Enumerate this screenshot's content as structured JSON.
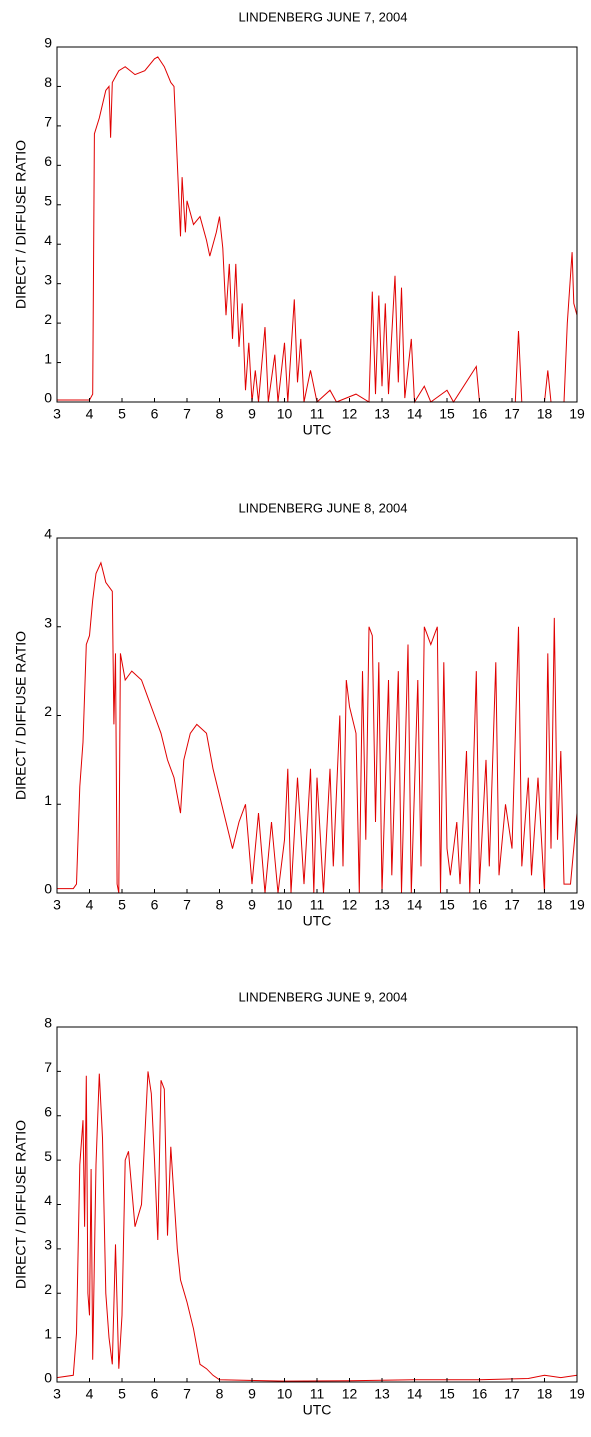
{
  "chart_data": [
    {
      "type": "line",
      "title": "LINDENBERG JUNE 7, 2004",
      "x_label": "UTC",
      "y_label": "DIRECT / DIFFUSE RATIO",
      "color": "#e00000",
      "xlim": [
        3,
        19
      ],
      "xticks": [
        3,
        4,
        5,
        6,
        7,
        8,
        9,
        10,
        11,
        12,
        13,
        14,
        15,
        16,
        17,
        18,
        19
      ],
      "ylim": [
        0,
        9
      ],
      "yticks": [
        0,
        1,
        2,
        3,
        4,
        5,
        6,
        7,
        8,
        9
      ],
      "x": [
        3,
        4.0,
        4.1,
        4.15,
        4.3,
        4.5,
        4.6,
        4.65,
        4.7,
        4.9,
        5.1,
        5.4,
        5.7,
        6.0,
        6.1,
        6.3,
        6.5,
        6.6,
        6.8,
        6.85,
        6.95,
        7.0,
        7.2,
        7.4,
        7.6,
        7.7,
        7.9,
        8.0,
        8.1,
        8.2,
        8.3,
        8.4,
        8.5,
        8.6,
        8.7,
        8.8,
        8.9,
        9.0,
        9.1,
        9.2,
        9.4,
        9.5,
        9.7,
        9.8,
        10.0,
        10.1,
        10.3,
        10.4,
        10.5,
        10.6,
        10.8,
        11.0,
        11.4,
        11.6,
        12.2,
        12.6,
        12.7,
        12.8,
        12.9,
        13.0,
        13.1,
        13.2,
        13.4,
        13.5,
        13.6,
        13.7,
        13.9,
        14.0,
        14.3,
        14.5,
        15.0,
        15.2,
        15.9,
        16.0,
        17.1,
        17.2,
        17.3,
        18.0,
        18.1,
        18.2,
        18.6,
        18.7,
        18.85,
        18.9,
        19.0
      ],
      "values": [
        0.05,
        0.05,
        0.2,
        6.8,
        7.2,
        7.9,
        8.0,
        6.7,
        8.1,
        8.4,
        8.5,
        8.3,
        8.4,
        8.7,
        8.75,
        8.5,
        8.1,
        8.0,
        4.2,
        5.7,
        4.3,
        5.1,
        4.5,
        4.7,
        4.1,
        3.7,
        4.3,
        4.7,
        3.9,
        2.2,
        3.5,
        1.6,
        3.5,
        1.4,
        2.5,
        0.3,
        1.5,
        0,
        0.8,
        0,
        1.9,
        0,
        1.2,
        0,
        1.5,
        0,
        2.6,
        0.5,
        1.6,
        0,
        0.8,
        0,
        0.3,
        0,
        0.2,
        0,
        2.8,
        0.2,
        2.7,
        0.4,
        2.5,
        0.2,
        3.2,
        0.5,
        2.9,
        0.1,
        1.6,
        0,
        0.4,
        0,
        0.3,
        0,
        0.9,
        0,
        0,
        1.8,
        0,
        0,
        0.8,
        0,
        0,
        2.0,
        3.8,
        2.5,
        2.2
      ]
    },
    {
      "type": "line",
      "title": "LINDENBERG JUNE 8, 2004",
      "x_label": "UTC",
      "y_label": "DIRECT / DIFFUSE RATIO",
      "color": "#e00000",
      "xlim": [
        3,
        19
      ],
      "xticks": [
        3,
        4,
        5,
        6,
        7,
        8,
        9,
        10,
        11,
        12,
        13,
        14,
        15,
        16,
        17,
        18,
        19
      ],
      "ylim": [
        0,
        4
      ],
      "yticks": [
        0,
        1,
        2,
        3,
        4
      ],
      "x": [
        3,
        3.5,
        3.6,
        3.7,
        3.8,
        3.9,
        4.0,
        4.1,
        4.2,
        4.35,
        4.5,
        4.7,
        4.75,
        4.8,
        4.85,
        4.9,
        4.95,
        5.1,
        5.3,
        5.6,
        5.8,
        6.0,
        6.2,
        6.4,
        6.6,
        6.8,
        6.9,
        7.1,
        7.3,
        7.6,
        7.8,
        8.0,
        8.2,
        8.4,
        8.6,
        8.8,
        9.0,
        9.2,
        9.4,
        9.6,
        9.8,
        10.0,
        10.1,
        10.2,
        10.4,
        10.6,
        10.8,
        10.9,
        11.0,
        11.2,
        11.4,
        11.5,
        11.7,
        11.8,
        11.9,
        12.0,
        12.2,
        12.3,
        12.4,
        12.5,
        12.6,
        12.7,
        12.8,
        12.9,
        13.0,
        13.2,
        13.3,
        13.5,
        13.6,
        13.8,
        13.9,
        14.1,
        14.2,
        14.3,
        14.5,
        14.7,
        14.8,
        14.9,
        15.0,
        15.1,
        15.3,
        15.4,
        15.6,
        15.7,
        15.9,
        16.0,
        16.2,
        16.3,
        16.5,
        16.6,
        16.8,
        17.0,
        17.2,
        17.3,
        17.5,
        17.6,
        17.8,
        18.0,
        18.1,
        18.2,
        18.3,
        18.4,
        18.5,
        18.6,
        18.8,
        19.0
      ],
      "values": [
        0.05,
        0.05,
        0.1,
        1.2,
        1.7,
        2.8,
        2.9,
        3.3,
        3.6,
        3.72,
        3.5,
        3.4,
        1.9,
        2.7,
        0.1,
        0,
        2.7,
        2.4,
        2.5,
        2.4,
        2.2,
        2.0,
        1.8,
        1.5,
        1.3,
        0.9,
        1.5,
        1.8,
        1.9,
        1.8,
        1.4,
        1.1,
        0.8,
        0.5,
        0.8,
        1.0,
        0.1,
        0.9,
        0,
        0.8,
        0,
        0.6,
        1.4,
        0,
        1.3,
        0.1,
        1.4,
        0,
        1.3,
        0,
        1.4,
        0.3,
        2.0,
        0.3,
        2.4,
        2.1,
        1.8,
        0,
        2.5,
        0.6,
        3.0,
        2.9,
        0.8,
        2.6,
        0,
        2.4,
        0.2,
        2.5,
        0,
        2.8,
        0,
        2.4,
        0.3,
        3.0,
        2.8,
        3.0,
        0,
        2.6,
        0.5,
        0.2,
        0.8,
        0.1,
        1.6,
        0,
        2.5,
        0.1,
        1.5,
        0.3,
        2.6,
        0.2,
        1.0,
        0.5,
        3.0,
        0.3,
        1.3,
        0.2,
        1.3,
        0,
        2.7,
        0.5,
        3.1,
        0.6,
        1.6,
        0.1,
        0.1,
        0.9
      ]
    },
    {
      "type": "line",
      "title": "LINDENBERG JUNE 9, 2004",
      "x_label": "UTC",
      "y_label": "DIRECT / DIFFUSE RATIO",
      "color": "#e00000",
      "xlim": [
        3,
        19
      ],
      "xticks": [
        3,
        4,
        5,
        6,
        7,
        8,
        9,
        10,
        11,
        12,
        13,
        14,
        15,
        16,
        17,
        18,
        19
      ],
      "ylim": [
        0,
        8
      ],
      "yticks": [
        0,
        1,
        2,
        3,
        4,
        5,
        6,
        7,
        8
      ],
      "x": [
        3,
        3.5,
        3.6,
        3.7,
        3.8,
        3.85,
        3.9,
        3.95,
        4.0,
        4.05,
        4.1,
        4.2,
        4.3,
        4.4,
        4.5,
        4.6,
        4.7,
        4.8,
        4.9,
        5.0,
        5.1,
        5.2,
        5.4,
        5.6,
        5.8,
        5.9,
        6.0,
        6.1,
        6.2,
        6.3,
        6.4,
        6.5,
        6.7,
        6.8,
        7.0,
        7.2,
        7.4,
        7.6,
        7.8,
        8.0,
        10,
        12,
        14,
        16,
        17.5,
        18,
        18.5,
        19
      ],
      "values": [
        0.1,
        0.15,
        1.1,
        4.9,
        5.9,
        3.5,
        6.9,
        2.0,
        1.5,
        4.8,
        0.5,
        4.9,
        6.95,
        5.5,
        2.0,
        1.0,
        0.4,
        3.1,
        0.3,
        1.5,
        5.0,
        5.2,
        3.5,
        4.0,
        7.0,
        6.5,
        5.0,
        3.2,
        6.8,
        6.6,
        3.3,
        5.3,
        3.0,
        2.3,
        1.8,
        1.2,
        0.4,
        0.3,
        0.15,
        0.05,
        0.02,
        0.03,
        0.05,
        0.05,
        0.08,
        0.15,
        0.1,
        0.15
      ]
    }
  ]
}
